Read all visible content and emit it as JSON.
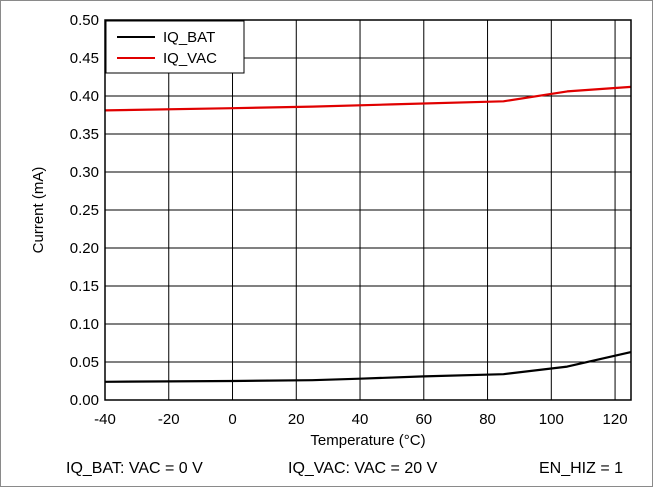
{
  "chart_data": {
    "type": "line",
    "xlabel": "Temperature (°C)",
    "ylabel": "Current (mA)",
    "xlim": [
      -40,
      125
    ],
    "ylim": [
      0,
      0.5
    ],
    "x_ticks": [
      -40,
      -20,
      0,
      20,
      40,
      60,
      80,
      100,
      120
    ],
    "y_ticks": [
      0.0,
      0.05,
      0.1,
      0.15,
      0.2,
      0.25,
      0.3,
      0.35,
      0.4,
      0.45,
      0.5
    ],
    "x_tick_labels": [
      "-40",
      "-20",
      "0",
      "20",
      "40",
      "60",
      "80",
      "100",
      "120"
    ],
    "y_tick_labels": [
      "0.00",
      "0.05",
      "0.10",
      "0.15",
      "0.20",
      "0.25",
      "0.30",
      "0.35",
      "0.40",
      "0.45",
      "0.50"
    ],
    "grid": true,
    "legend_position": "top-left",
    "series": [
      {
        "name": "IQ_BAT",
        "color": "#000000",
        "x": [
          -40,
          -20,
          0,
          25,
          40,
          60,
          85,
          105,
          125
        ],
        "y": [
          0.024,
          0.0245,
          0.025,
          0.026,
          0.028,
          0.031,
          0.034,
          0.044,
          0.063
        ]
      },
      {
        "name": "IQ_VAC",
        "color": "#e00000",
        "x": [
          -40,
          0,
          25,
          50,
          85,
          105,
          125
        ],
        "y": [
          0.381,
          0.384,
          0.386,
          0.389,
          0.393,
          0.406,
          0.412
        ]
      }
    ]
  },
  "caption": {
    "left": "IQ_BAT: VAC = 0 V",
    "middle": "IQ_VAC: VAC = 20 V",
    "right": "EN_HIZ = 1"
  }
}
